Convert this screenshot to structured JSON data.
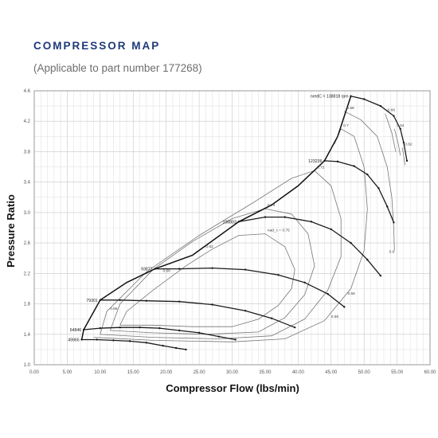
{
  "header": {
    "title": "COMPRESSOR MAP",
    "subtitle": "(Applicable to part number 177268)"
  },
  "chart_data": {
    "type": "line",
    "xlabel": "Compressor Flow (lbs/min)",
    "ylabel": "Pressure Ratio",
    "xlim": [
      0,
      60
    ],
    "ylim": [
      1.0,
      4.6
    ],
    "grid": true,
    "x_tick_labels": [
      "0.00",
      "5.00",
      "10.00",
      "15.00",
      "20.00",
      "25.00",
      "30.00",
      "35.00",
      "40.00",
      "45.00",
      "50.00",
      "55.00",
      "60.00"
    ],
    "y_tick_labels": [
      "1.0",
      "1.4",
      "1.8",
      "2.2",
      "2.6",
      "3.0",
      "3.4",
      "3.8",
      "4.2",
      "4.6"
    ],
    "speed_lines": [
      {
        "label": "49965",
        "points": [
          [
            7.2,
            1.33
          ],
          [
            9.5,
            1.33
          ],
          [
            12,
            1.32
          ],
          [
            14.5,
            1.31
          ],
          [
            17,
            1.29
          ],
          [
            19.5,
            1.25
          ],
          [
            21.5,
            1.22
          ],
          [
            23,
            1.2
          ]
        ]
      },
      {
        "label": "64846",
        "points": [
          [
            7.5,
            1.46
          ],
          [
            10,
            1.48
          ],
          [
            13,
            1.49
          ],
          [
            16,
            1.49
          ],
          [
            19,
            1.48
          ],
          [
            22,
            1.45
          ],
          [
            25,
            1.42
          ],
          [
            28,
            1.37
          ],
          [
            30.5,
            1.33
          ]
        ]
      },
      {
        "label": "79301",
        "points": [
          [
            10,
            1.85
          ],
          [
            13,
            1.85
          ],
          [
            17,
            1.84
          ],
          [
            22,
            1.83
          ],
          [
            27,
            1.79
          ],
          [
            32,
            1.71
          ],
          [
            36,
            1.61
          ],
          [
            39.5,
            1.49
          ]
        ]
      },
      {
        "label": "93877",
        "points": [
          [
            18.3,
            2.26
          ],
          [
            22,
            2.26
          ],
          [
            27,
            2.27
          ],
          [
            32,
            2.25
          ],
          [
            37,
            2.18
          ],
          [
            41,
            2.08
          ],
          [
            44.5,
            1.93
          ],
          [
            47,
            1.76
          ]
        ]
      },
      {
        "label": "108803",
        "points": [
          [
            31,
            2.88
          ],
          [
            35,
            2.94
          ],
          [
            38,
            2.94
          ],
          [
            42,
            2.88
          ],
          [
            45,
            2.78
          ],
          [
            48,
            2.6
          ],
          [
            50.5,
            2.38
          ],
          [
            52.5,
            2.17
          ]
        ]
      },
      {
        "label": "123236",
        "points": [
          [
            44,
            3.68
          ],
          [
            46,
            3.67
          ],
          [
            48.5,
            3.61
          ],
          [
            50.5,
            3.5
          ],
          [
            52.2,
            3.32
          ],
          [
            53.5,
            3.08
          ],
          [
            54.5,
            2.87
          ]
        ]
      },
      {
        "label": "nredC = 138818 rpm",
        "points": [
          [
            48,
            4.53
          ],
          [
            50,
            4.49
          ],
          [
            52.5,
            4.4
          ],
          [
            54.5,
            4.27
          ],
          [
            55.5,
            4.1
          ],
          [
            56,
            3.92
          ],
          [
            56.5,
            3.68
          ]
        ]
      }
    ],
    "surge_line": [
      [
        7.2,
        1.33
      ],
      [
        7.5,
        1.46
      ],
      [
        10,
        1.85
      ],
      [
        14,
        2.08
      ],
      [
        18.3,
        2.26
      ],
      [
        24,
        2.44
      ],
      [
        31,
        2.88
      ],
      [
        36,
        3.1
      ],
      [
        40,
        3.35
      ],
      [
        44,
        3.68
      ],
      [
        46,
        4.0
      ],
      [
        48,
        4.53
      ]
    ],
    "efficiency_islands": [
      {
        "label": "nad_c = 0.75",
        "points": [
          [
            13,
            1.52
          ],
          [
            18,
            1.52
          ],
          [
            24,
            1.5
          ],
          [
            30,
            1.5
          ],
          [
            34,
            1.6
          ],
          [
            37,
            1.78
          ],
          [
            39,
            2.0
          ],
          [
            39.5,
            2.25
          ],
          [
            38,
            2.55
          ],
          [
            35,
            2.72
          ],
          [
            31,
            2.7
          ],
          [
            27,
            2.52
          ],
          [
            23,
            2.3
          ],
          [
            18,
            1.98
          ],
          [
            14,
            1.7
          ],
          [
            13,
            1.52
          ]
        ]
      },
      {
        "label": "0.74",
        "points": [
          [
            11.5,
            1.45
          ],
          [
            18,
            1.42
          ],
          [
            26,
            1.4
          ],
          [
            34,
            1.43
          ],
          [
            38,
            1.62
          ],
          [
            41,
            1.92
          ],
          [
            42.5,
            2.3
          ],
          [
            41.5,
            2.72
          ],
          [
            39,
            2.98
          ],
          [
            35,
            3.05
          ],
          [
            30,
            2.92
          ],
          [
            24,
            2.62
          ],
          [
            18,
            2.25
          ],
          [
            13,
            1.8
          ],
          [
            11.5,
            1.45
          ]
        ]
      },
      {
        "label": "0.72",
        "points": [
          [
            10,
            1.4
          ],
          [
            18,
            1.36
          ],
          [
            28,
            1.34
          ],
          [
            36,
            1.38
          ],
          [
            41,
            1.6
          ],
          [
            44.5,
            1.98
          ],
          [
            46.5,
            2.42
          ],
          [
            46.5,
            2.92
          ],
          [
            45,
            3.35
          ],
          [
            42.5,
            3.55
          ],
          [
            39,
            3.45
          ],
          [
            33,
            3.12
          ],
          [
            25,
            2.7
          ],
          [
            17,
            2.22
          ],
          [
            11,
            1.7
          ],
          [
            10,
            1.4
          ]
        ]
      },
      {
        "label": "0.7",
        "points": [
          [
            9,
            1.36
          ],
          [
            18,
            1.32
          ],
          [
            30,
            1.3
          ],
          [
            38,
            1.34
          ],
          [
            44,
            1.58
          ],
          [
            48,
            2.0
          ],
          [
            50,
            2.5
          ],
          [
            50.5,
            3.05
          ],
          [
            50,
            3.6
          ],
          [
            48.5,
            4.0
          ],
          [
            46.5,
            4.1
          ],
          [
            45.5,
            3.9
          ]
        ]
      },
      {
        "label": "0.68",
        "points": [
          [
            47,
            4.33
          ],
          [
            49.5,
            4.22
          ],
          [
            52,
            4.0
          ],
          [
            53.5,
            3.6
          ],
          [
            54.2,
            3.2
          ],
          [
            54.5,
            2.8
          ],
          [
            54.6,
            2.5
          ]
        ]
      },
      {
        "label": "0.66",
        "points": [
          [
            53.2,
            4.3
          ],
          [
            54.2,
            4.05
          ],
          [
            54.8,
            3.8
          ]
        ]
      },
      {
        "label": "0.64",
        "points": [
          [
            54.6,
            4.1
          ],
          [
            55.2,
            3.9
          ],
          [
            55.5,
            3.75
          ]
        ]
      },
      {
        "label": "0.62",
        "points": [
          [
            55.8,
            3.85
          ],
          [
            56,
            3.75
          ],
          [
            56.2,
            3.62
          ]
        ]
      }
    ],
    "extra_labels": [
      {
        "text": "0.58",
        "x": 45,
        "y": 1.62
      },
      {
        "text": "0.56",
        "x": 47.5,
        "y": 1.92
      },
      {
        "text": "0.6",
        "x": 53.8,
        "y": 2.47
      },
      {
        "text": "0.68",
        "x": 19.5,
        "y": 2.22
      },
      {
        "text": "0.66",
        "x": 11.5,
        "y": 1.72
      },
      {
        "text": "0.62",
        "x": 26,
        "y": 2.54
      }
    ]
  }
}
